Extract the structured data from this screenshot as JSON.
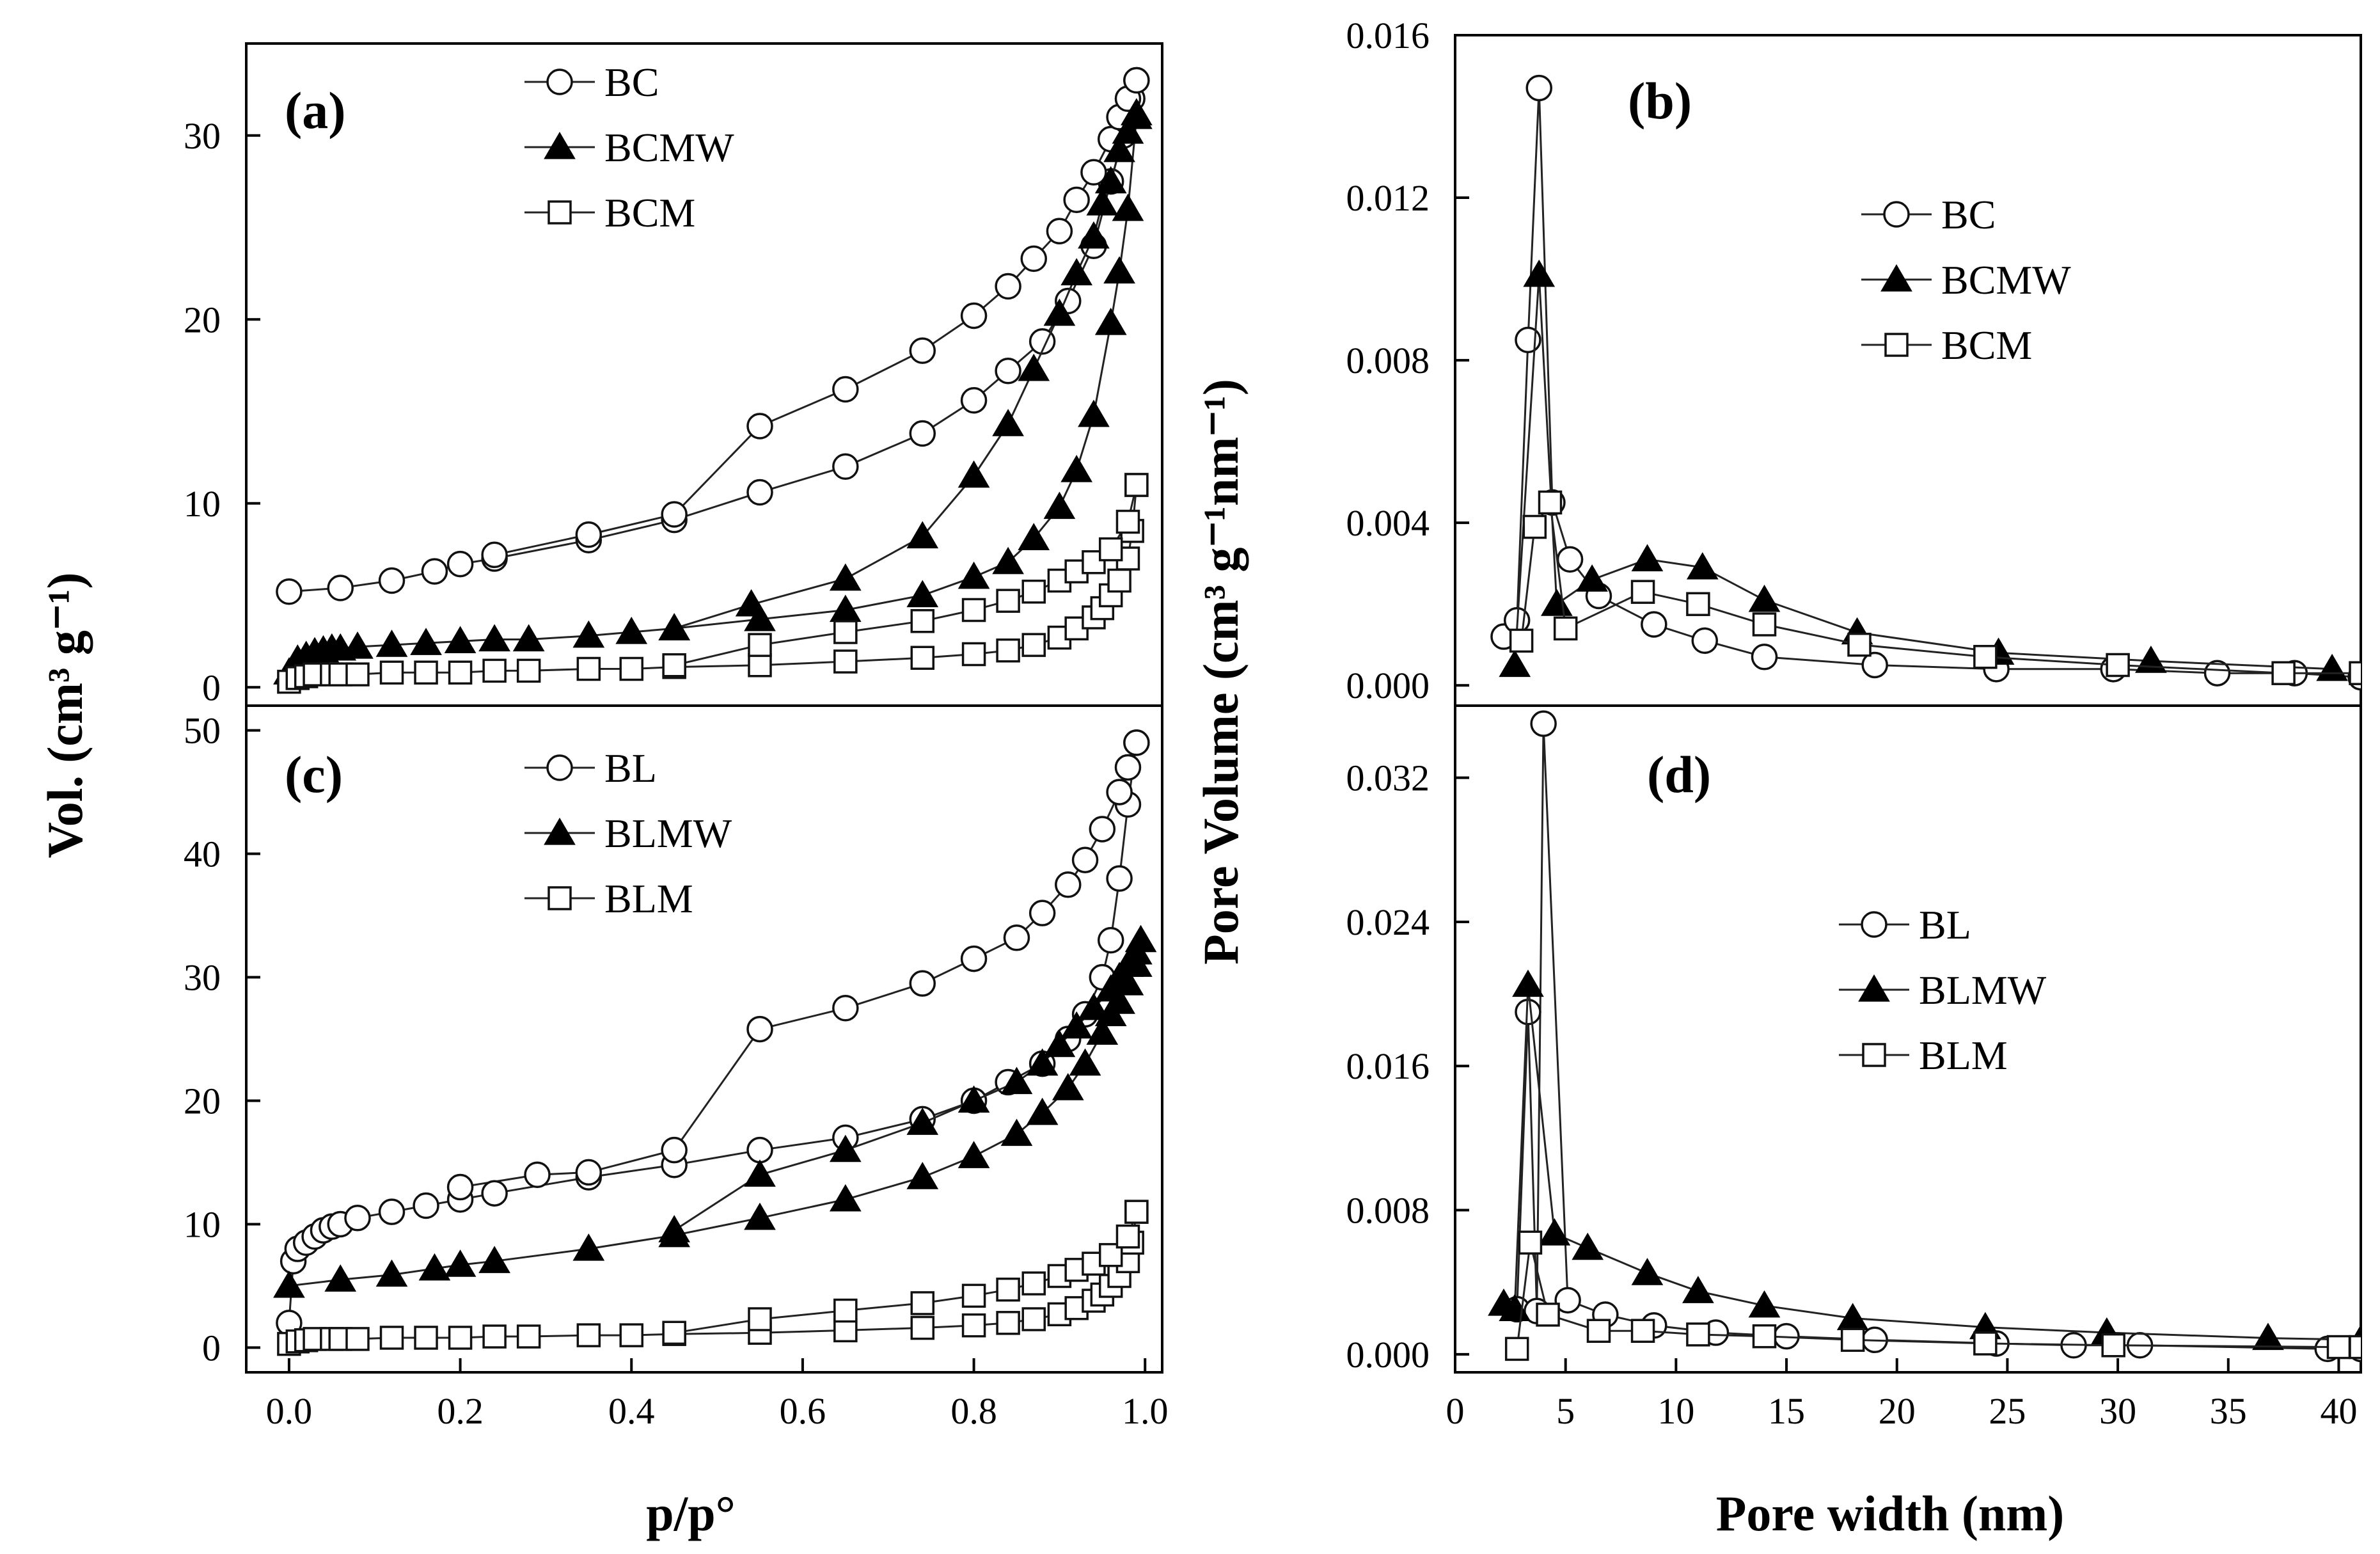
{
  "figure": {
    "xlabel_left": "p/p°",
    "xlabel_right": "Pore width (nm)",
    "ylabel_left": "Vol. (cm³ g⁻¹)",
    "ylabel_right": "Pore Volume (cm³ g⁻¹nm⁻¹)"
  },
  "chart_data": [
    {
      "id": "a",
      "label": "(a)",
      "type": "scatter",
      "panel": "top-left",
      "xlim": [
        -0.05,
        1.02
      ],
      "ylim": [
        -1,
        35
      ],
      "xticks": [],
      "yticks": [
        0,
        10,
        20,
        30
      ],
      "ytick_labels": [
        "0",
        "10",
        "20",
        "30"
      ],
      "legend": {
        "position": "top-center"
      },
      "series": [
        {
          "name": "BC",
          "marker": "circle-open",
          "branches": [
            {
              "x": [
                0.0,
                0.06,
                0.12,
                0.17,
                0.2,
                0.24,
                0.35,
                0.45,
                0.55,
                0.65,
                0.74,
                0.8,
                0.84,
                0.88,
                0.91,
                0.94,
                0.96,
                0.975,
                0.985,
                0.99
              ],
              "y": [
                5.2,
                5.4,
                5.8,
                6.3,
                6.7,
                7.0,
                8.0,
                9.1,
                10.6,
                12.0,
                13.8,
                15.6,
                17.2,
                18.8,
                21.0,
                24.0,
                27.5,
                30.0,
                32.0,
                33.0
              ]
            },
            {
              "x": [
                0.24,
                0.35,
                0.45,
                0.55,
                0.65,
                0.74,
                0.8,
                0.84,
                0.87,
                0.9,
                0.92,
                0.94,
                0.96,
                0.97,
                0.98,
                0.99
              ],
              "y": [
                7.2,
                8.3,
                9.4,
                14.2,
                16.2,
                18.3,
                20.2,
                21.8,
                23.3,
                24.8,
                26.5,
                28.0,
                29.8,
                31.0,
                32.0,
                33.0
              ]
            }
          ]
        },
        {
          "name": "BCMW",
          "marker": "triangle-filled",
          "branches": [
            {
              "x": [
                0.0,
                0.01,
                0.02,
                0.03,
                0.04,
                0.05,
                0.06,
                0.08,
                0.12,
                0.16,
                0.2,
                0.24,
                0.28,
                0.35,
                0.4,
                0.45,
                0.55,
                0.65,
                0.74,
                0.8,
                0.84,
                0.87,
                0.9,
                0.92,
                0.94,
                0.96,
                0.97,
                0.98,
                0.99
              ],
              "y": [
                0.8,
                1.5,
                1.7,
                1.9,
                2.0,
                2.1,
                2.1,
                2.2,
                2.3,
                2.4,
                2.5,
                2.6,
                2.6,
                2.8,
                3.0,
                3.2,
                3.7,
                4.2,
                5.0,
                6.0,
                6.8,
                8.1,
                9.8,
                11.8,
                14.8,
                19.8,
                22.6,
                26.0,
                31.0
              ]
            },
            {
              "x": [
                0.45,
                0.54,
                0.65,
                0.74,
                0.8,
                0.84,
                0.87,
                0.9,
                0.92,
                0.94,
                0.95,
                0.96,
                0.97,
                0.98,
                0.99
              ],
              "y": [
                3.2,
                4.5,
                5.9,
                8.2,
                11.5,
                14.3,
                17.3,
                20.3,
                22.5,
                24.5,
                26.3,
                27.5,
                29.2,
                30.2,
                31.2
              ]
            }
          ]
        },
        {
          "name": "BCM",
          "marker": "square-open",
          "branches": [
            {
              "x": [
                0.0,
                0.01,
                0.02,
                0.03,
                0.05,
                0.06,
                0.08,
                0.12,
                0.16,
                0.2,
                0.24,
                0.28,
                0.35,
                0.4,
                0.45,
                0.55,
                0.65,
                0.74,
                0.8,
                0.84,
                0.87,
                0.9,
                0.92,
                0.94,
                0.95,
                0.96,
                0.97,
                0.98,
                0.985,
                0.99
              ],
              "y": [
                0.3,
                0.5,
                0.6,
                0.7,
                0.7,
                0.7,
                0.7,
                0.8,
                0.8,
                0.8,
                0.9,
                0.9,
                1.0,
                1.0,
                1.1,
                1.2,
                1.4,
                1.6,
                1.8,
                2.0,
                2.3,
                2.7,
                3.2,
                3.8,
                4.3,
                5.0,
                5.8,
                7.0,
                8.5,
                11.0
              ]
            },
            {
              "x": [
                0.45,
                0.55,
                0.65,
                0.74,
                0.8,
                0.84,
                0.87,
                0.9,
                0.92,
                0.94,
                0.96,
                0.98,
                0.99
              ],
              "y": [
                1.2,
                2.3,
                3.0,
                3.6,
                4.2,
                4.7,
                5.2,
                5.8,
                6.3,
                6.8,
                7.5,
                9.0,
                11.0
              ]
            }
          ]
        }
      ]
    },
    {
      "id": "c",
      "label": "(c)",
      "type": "scatter",
      "panel": "bottom-left",
      "xlim": [
        -0.05,
        1.02
      ],
      "ylim": [
        -2,
        52
      ],
      "xticks": [
        0.0,
        0.2,
        0.4,
        0.6,
        0.8,
        1.0
      ],
      "xtick_labels": [
        "0.0",
        "0.2",
        "0.4",
        "0.6",
        "0.8",
        "1.0"
      ],
      "yticks": [
        0,
        10,
        20,
        30,
        40,
        50
      ],
      "ytick_labels": [
        "0",
        "10",
        "20",
        "30",
        "40",
        "50"
      ],
      "legend": {
        "position": "top-center"
      },
      "series": [
        {
          "name": "BL",
          "marker": "circle-open",
          "branches": [
            {
              "x": [
                0.0,
                0.005,
                0.01,
                0.02,
                0.03,
                0.04,
                0.05,
                0.06,
                0.08,
                0.12,
                0.16,
                0.2,
                0.24,
                0.35,
                0.45,
                0.55,
                0.65,
                0.74,
                0.8,
                0.84,
                0.88,
                0.91,
                0.93,
                0.95,
                0.96,
                0.97,
                0.98,
                0.99
              ],
              "y": [
                2.0,
                7.0,
                8.0,
                8.5,
                9.0,
                9.5,
                9.8,
                10.0,
                10.5,
                11.0,
                11.5,
                12.0,
                12.5,
                13.8,
                14.8,
                16.0,
                17.0,
                18.5,
                20.0,
                21.5,
                23.0,
                25.0,
                27.0,
                30.0,
                33.0,
                38.0,
                44.0,
                49.0
              ]
            },
            {
              "x": [
                0.2,
                0.29,
                0.35,
                0.45,
                0.55,
                0.65,
                0.74,
                0.8,
                0.85,
                0.88,
                0.91,
                0.93,
                0.95,
                0.97,
                0.98,
                0.99
              ],
              "y": [
                13.0,
                14.0,
                14.2,
                16.0,
                25.8,
                27.5,
                29.5,
                31.5,
                33.2,
                35.2,
                37.5,
                39.5,
                42.0,
                45.0,
                47.0,
                49.0
              ]
            }
          ]
        },
        {
          "name": "BLMW",
          "marker": "triangle-filled",
          "branches": [
            {
              "x": [
                0.0,
                0.06,
                0.12,
                0.17,
                0.2,
                0.24,
                0.35,
                0.45,
                0.55,
                0.65,
                0.74,
                0.8,
                0.85,
                0.88,
                0.91,
                0.93,
                0.95,
                0.96,
                0.97,
                0.98,
                0.99
              ],
              "y": [
                5.0,
                5.5,
                5.9,
                6.4,
                6.7,
                7.0,
                8.0,
                9.1,
                10.5,
                12.0,
                13.8,
                15.5,
                17.3,
                19.0,
                21.0,
                23.0,
                25.5,
                27.0,
                28.0,
                29.5,
                31.0
              ]
            },
            {
              "x": [
                0.45,
                0.55,
                0.65,
                0.74,
                0.8,
                0.85,
                0.88,
                0.9,
                0.92,
                0.94,
                0.96,
                0.97,
                0.98,
                0.99,
                0.995
              ],
              "y": [
                9.5,
                14.0,
                16.0,
                18.2,
                20.0,
                21.5,
                23.0,
                24.5,
                26.0,
                27.5,
                29.0,
                30.0,
                31.0,
                32.0,
                33.0
              ]
            }
          ]
        },
        {
          "name": "BLM",
          "marker": "square-open",
          "branches": [
            {
              "x": [
                0.0,
                0.01,
                0.02,
                0.03,
                0.05,
                0.06,
                0.08,
                0.12,
                0.16,
                0.2,
                0.24,
                0.28,
                0.35,
                0.4,
                0.45,
                0.55,
                0.65,
                0.74,
                0.8,
                0.84,
                0.87,
                0.9,
                0.92,
                0.94,
                0.95,
                0.96,
                0.97,
                0.98,
                0.985,
                0.99
              ],
              "y": [
                0.3,
                0.5,
                0.6,
                0.7,
                0.7,
                0.7,
                0.7,
                0.8,
                0.8,
                0.8,
                0.9,
                0.9,
                1.0,
                1.0,
                1.1,
                1.2,
                1.4,
                1.6,
                1.8,
                2.0,
                2.3,
                2.7,
                3.2,
                3.8,
                4.3,
                5.0,
                5.8,
                7.0,
                8.5,
                11.0
              ]
            },
            {
              "x": [
                0.45,
                0.55,
                0.65,
                0.74,
                0.8,
                0.84,
                0.87,
                0.9,
                0.92,
                0.94,
                0.96,
                0.98,
                0.99
              ],
              "y": [
                1.2,
                2.3,
                3.0,
                3.6,
                4.2,
                4.7,
                5.2,
                5.8,
                6.3,
                6.8,
                7.5,
                9.0,
                11.0
              ]
            }
          ]
        }
      ]
    },
    {
      "id": "b",
      "label": "(b)",
      "type": "line",
      "panel": "top-right",
      "xlim": [
        0,
        41
      ],
      "ylim": [
        -0.0005,
        0.016
      ],
      "xticks": [],
      "yticks": [
        0.0,
        0.004,
        0.008,
        0.012,
        0.016
      ],
      "ytick_labels": [
        "0.000",
        "0.004",
        "0.008",
        "0.012",
        "0.016"
      ],
      "legend": {
        "position": "top-right"
      },
      "series": [
        {
          "name": "BC",
          "marker": "circle-open",
          "x": [
            2.2,
            2.8,
            3.3,
            3.8,
            4.4,
            5.2,
            6.5,
            9.0,
            11.3,
            14.0,
            19.0,
            24.5,
            29.8,
            34.5,
            38.0,
            41.0
          ],
          "y": [
            0.0012,
            0.0016,
            0.0085,
            0.0147,
            0.0045,
            0.0031,
            0.0022,
            0.0015,
            0.0011,
            0.0007,
            0.0005,
            0.0004,
            0.0004,
            0.0003,
            0.0003,
            0.0002
          ]
        },
        {
          "name": "BCMW",
          "marker": "triangle-filled",
          "x": [
            2.7,
            3.8,
            4.6,
            6.2,
            8.7,
            11.2,
            14.0,
            18.2,
            24.6,
            31.5,
            39.7
          ],
          "y": [
            0.0005,
            0.0101,
            0.002,
            0.0026,
            0.0031,
            0.0029,
            0.0021,
            0.0013,
            0.0008,
            0.0006,
            0.0004
          ]
        },
        {
          "name": "BCM",
          "marker": "square-open",
          "x": [
            3.0,
            3.6,
            4.3,
            5.0,
            8.5,
            11.0,
            14.0,
            18.3,
            24.0,
            30.0,
            37.5,
            41.0
          ],
          "y": [
            0.0011,
            0.0039,
            0.0045,
            0.0014,
            0.0023,
            0.002,
            0.0015,
            0.001,
            0.0007,
            0.0005,
            0.0003,
            0.0003
          ]
        }
      ]
    },
    {
      "id": "d",
      "label": "(d)",
      "type": "line",
      "panel": "bottom-right",
      "xlim": [
        0,
        41
      ],
      "ylim": [
        -0.001,
        0.036
      ],
      "xticks": [
        0,
        5,
        10,
        15,
        20,
        25,
        30,
        35,
        40
      ],
      "xtick_labels": [
        "0",
        "5",
        "10",
        "15",
        "20",
        "25",
        "30",
        "35",
        "40"
      ],
      "yticks": [
        0.0,
        0.008,
        0.016,
        0.024,
        0.032
      ],
      "ytick_labels": [
        "0.000",
        "0.008",
        "0.016",
        "0.024",
        "0.032"
      ],
      "legend": {
        "position": "center-right"
      },
      "series": [
        {
          "name": "BL",
          "marker": "circle-open",
          "x": [
            2.8,
            3.3,
            3.7,
            4.0,
            5.1,
            6.8,
            9.0,
            11.8,
            15.0,
            19.0,
            24.5,
            28.0,
            31.0,
            39.5,
            41.0
          ],
          "y": [
            0.0025,
            0.019,
            0.0024,
            0.035,
            0.003,
            0.0022,
            0.0016,
            0.0012,
            0.001,
            0.0008,
            0.0006,
            0.0005,
            0.0005,
            0.0003,
            0.0003
          ]
        },
        {
          "name": "BLMW",
          "marker": "triangle-filled",
          "x": [
            2.2,
            2.7,
            3.3,
            4.5,
            6.0,
            8.7,
            11.0,
            14.0,
            18.0,
            24.0,
            29.5,
            36.8,
            41.0
          ],
          "y": [
            0.0028,
            0.0025,
            0.0205,
            0.0067,
            0.0059,
            0.0045,
            0.0035,
            0.0027,
            0.002,
            0.0015,
            0.0012,
            0.0009,
            0.0008
          ]
        },
        {
          "name": "BLM",
          "marker": "square-open",
          "x": [
            2.8,
            3.4,
            4.2,
            6.5,
            8.5,
            11.0,
            14.0,
            18.0,
            24.0,
            29.8,
            40.0,
            41.0
          ],
          "y": [
            0.0003,
            0.0062,
            0.0022,
            0.0013,
            0.0013,
            0.0011,
            0.001,
            0.0008,
            0.0006,
            0.0005,
            0.0004,
            0.0004
          ]
        }
      ]
    }
  ]
}
